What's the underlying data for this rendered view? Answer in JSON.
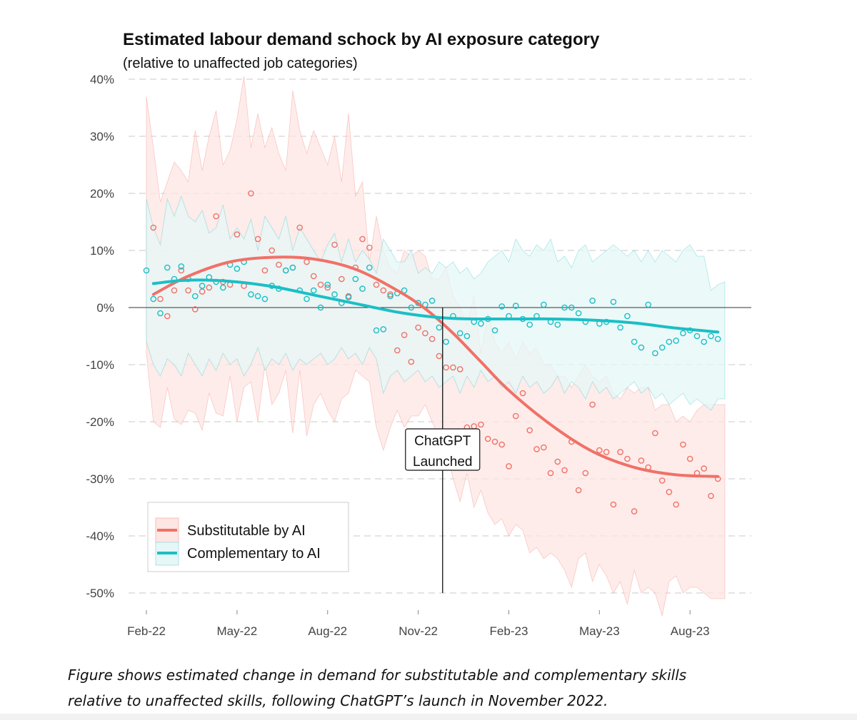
{
  "chart_data": {
    "type": "line",
    "title": "Estimated labour demand schock by AI exposure category",
    "subtitle": "(relative to unaffected job categories)",
    "xlabel": "",
    "ylabel": "",
    "ylim": [
      -52,
      40
    ],
    "y_ticks": [
      40,
      30,
      20,
      10,
      0,
      -10,
      -20,
      -30,
      -40,
      -50
    ],
    "y_tick_labels": [
      "40%",
      "30%",
      "20%",
      "10%",
      "0%",
      "-10%",
      "-20%",
      "-30%",
      "-40%",
      "-50%"
    ],
    "x_range": [
      0,
      83
    ],
    "x_ticks": [
      0,
      13,
      26,
      39,
      52,
      65,
      78
    ],
    "x_tick_labels": [
      "Feb-22",
      "May-22",
      "Aug-22",
      "Nov-22",
      "Feb-23",
      "May-23",
      "Aug-23"
    ],
    "grid": true,
    "legend_position": "bottom-left",
    "annotation": {
      "x": 42.5,
      "lines": [
        "ChatGPT",
        "Launched"
      ]
    },
    "series": [
      {
        "name": "Substitutable by AI",
        "color": "#F07167",
        "band_color": "#FDE6E3",
        "trend_x": [
          1,
          6,
          12,
          18,
          24,
          30,
          36,
          40,
          44,
          48,
          52,
          58,
          64,
          70,
          76,
          82
        ],
        "trend_y": [
          2.3,
          5.5,
          8,
          8.8,
          8.5,
          6.7,
          3,
          -0.2,
          -4.5,
          -9.5,
          -14.5,
          -20.5,
          -25.2,
          -28,
          -29.3,
          -29.6
        ],
        "points_x": [
          1,
          2,
          3,
          4,
          5,
          6,
          7,
          8,
          9,
          10,
          11,
          12,
          13,
          14,
          15,
          16,
          17,
          18,
          19,
          20,
          21,
          22,
          23,
          24,
          25,
          26,
          27,
          28,
          29,
          30,
          31,
          32,
          33,
          34,
          35,
          36,
          37,
          38,
          39,
          40,
          41,
          42,
          43,
          44,
          45,
          46,
          47,
          48,
          49,
          50,
          51,
          52,
          53,
          54,
          55,
          56,
          57,
          58,
          59,
          60,
          61,
          62,
          63,
          64,
          65,
          66,
          67,
          68,
          69,
          70,
          71,
          72,
          73,
          74,
          75,
          76,
          77,
          78,
          79,
          80,
          81,
          82
        ],
        "points_y": [
          14,
          1.5,
          -1.5,
          3,
          6.5,
          3,
          -0.3,
          2.8,
          3.5,
          16,
          4.5,
          4,
          12.8,
          3.8,
          20,
          12,
          6.5,
          10,
          7.5,
          6.5,
          7,
          14,
          8,
          5.5,
          4,
          3.5,
          11,
          5,
          2,
          7,
          12,
          10.5,
          4,
          3,
          2.3,
          -7.5,
          -4.8,
          -9.5,
          -3.5,
          -4.5,
          -5.5,
          -8.5,
          -10.5,
          -10.5,
          -10.8,
          -21,
          -20.8,
          -20.5,
          -23,
          -23.5,
          -24,
          -27.8,
          -19,
          -15,
          -21.5,
          -24.8,
          -24.5,
          -29,
          -27,
          -28.5,
          -23.5,
          -32,
          -29,
          -17,
          -25,
          -25.3,
          -34.5,
          -25.3,
          -26.5,
          -35.7,
          -26.8,
          -28,
          -22,
          -30.3,
          -32.3,
          -34.5,
          -24,
          -26.5,
          -29,
          -28.2,
          -33,
          -30
        ],
        "band_x": [
          0,
          1,
          2,
          3,
          4,
          5,
          6,
          7,
          8,
          9,
          10,
          11,
          12,
          13,
          14,
          15,
          16,
          17,
          18,
          19,
          20,
          21,
          22,
          23,
          24,
          25,
          26,
          27,
          28,
          29,
          30,
          31,
          32,
          33,
          34,
          35,
          36,
          37,
          38,
          39,
          40,
          41,
          42,
          43,
          44,
          45,
          46,
          47,
          48,
          49,
          50,
          51,
          52,
          53,
          54,
          55,
          56,
          57,
          58,
          59,
          60,
          61,
          62,
          63,
          64,
          65,
          66,
          67,
          68,
          69,
          70,
          71,
          72,
          73,
          74,
          75,
          76,
          77,
          78,
          79,
          80,
          81,
          82,
          83
        ],
        "band_upper": [
          37,
          28,
          18.5,
          22,
          25.5,
          24,
          22,
          31,
          24,
          30,
          34.5,
          25,
          27.5,
          33,
          40.5,
          28,
          34,
          28,
          31.5,
          27,
          24,
          38,
          31,
          27,
          31,
          28,
          25,
          30,
          22,
          34,
          19.5,
          22,
          8,
          16,
          10,
          7,
          6,
          10,
          9,
          10,
          9,
          5,
          5,
          7,
          2,
          0,
          -3,
          2,
          -8,
          -1,
          -6,
          -8,
          -6,
          -9,
          -6,
          -8,
          -7,
          -10,
          -10,
          -12,
          -12,
          -14,
          -12,
          -10,
          -12,
          -13,
          -12,
          -15,
          -16,
          -14,
          -15,
          -14,
          -14,
          -18,
          -17,
          -17,
          -20,
          -19,
          -20,
          -18,
          -17,
          -17,
          -17,
          -17
        ],
        "band_lower": [
          -8,
          -20,
          -21,
          -14,
          -19.5,
          -20.5,
          -18,
          -18.5,
          -21.5,
          -15,
          -18.5,
          -19,
          -12,
          -20,
          -14,
          -13,
          -20,
          -10,
          -17,
          -15,
          -11,
          -22,
          -11,
          -22.5,
          -17,
          -15,
          -18,
          -20,
          -16,
          -15,
          -11,
          -12,
          -13,
          -21,
          -25,
          -21,
          -18,
          -21,
          -19,
          -19,
          -17,
          -20,
          -23,
          -25,
          -30,
          -34,
          -29,
          -35,
          -32,
          -36,
          -38,
          -37,
          -40,
          -38,
          -39,
          -43,
          -42,
          -44,
          -43,
          -44,
          -46,
          -49,
          -44,
          -43,
          -48,
          -45,
          -47,
          -50,
          -48,
          -52,
          -46,
          -50,
          -49,
          -50,
          -54,
          -48,
          -47,
          -50,
          -49,
          -49,
          -50,
          -51,
          -51,
          -51
        ]
      },
      {
        "name": "Complementary to AI",
        "color": "#1ABFC5",
        "band_color": "#E6F7F7",
        "trend_x": [
          1,
          6,
          12,
          18,
          24,
          30,
          36,
          40,
          44,
          48,
          52,
          58,
          64,
          70,
          76,
          82
        ],
        "trend_y": [
          4.2,
          4.8,
          4.6,
          3.7,
          2.2,
          0.7,
          -0.8,
          -1.5,
          -1.9,
          -2,
          -2,
          -2,
          -2.2,
          -2.7,
          -3.6,
          -4.3
        ],
        "points_x": [
          0,
          1,
          2,
          3,
          4,
          5,
          6,
          7,
          8,
          9,
          10,
          11,
          12,
          13,
          14,
          15,
          16,
          17,
          18,
          19,
          20,
          21,
          22,
          23,
          24,
          25,
          26,
          27,
          28,
          29,
          30,
          31,
          32,
          33,
          34,
          35,
          36,
          37,
          38,
          39,
          40,
          41,
          42,
          43,
          44,
          45,
          46,
          47,
          48,
          49,
          50,
          51,
          52,
          53,
          54,
          55,
          56,
          57,
          58,
          59,
          60,
          61,
          62,
          63,
          64,
          65,
          66,
          67,
          68,
          69,
          70,
          71,
          72,
          73,
          74,
          75,
          76,
          77,
          78,
          79,
          80,
          81,
          82
        ],
        "points_y": [
          6.5,
          1.5,
          -1,
          7,
          5,
          7.2,
          5,
          2,
          3.8,
          5.3,
          4.5,
          3.5,
          7.5,
          6.8,
          8,
          2.3,
          2,
          1.5,
          3.8,
          3.3,
          6.5,
          7,
          3,
          1.5,
          3,
          0,
          4,
          2.3,
          0.8,
          1.8,
          5,
          3.3,
          7,
          -4,
          -3.8,
          2,
          2.5,
          3,
          0,
          0.8,
          0.5,
          1.2,
          -3.5,
          -6,
          -1.5,
          -4.5,
          -5,
          -2.5,
          -2.8,
          -2,
          -4,
          0.2,
          -1.5,
          0.3,
          -2,
          -3,
          -1.5,
          0.5,
          -2.5,
          -3,
          0,
          0,
          -1,
          -2.5,
          1.2,
          -2.8,
          -2.5,
          1,
          -3.5,
          -1.5,
          -6,
          -7,
          0.5,
          -8,
          -7,
          -6,
          -5.8,
          -4.5,
          -4,
          -5,
          -6,
          -5,
          -5.5
        ],
        "band_x": [
          0,
          1,
          2,
          3,
          4,
          5,
          6,
          7,
          8,
          9,
          10,
          11,
          12,
          13,
          14,
          15,
          16,
          17,
          18,
          19,
          20,
          21,
          22,
          23,
          24,
          25,
          26,
          27,
          28,
          29,
          30,
          31,
          32,
          33,
          34,
          35,
          36,
          37,
          38,
          39,
          40,
          41,
          42,
          43,
          44,
          45,
          46,
          47,
          48,
          49,
          50,
          51,
          52,
          53,
          54,
          55,
          56,
          57,
          58,
          59,
          60,
          61,
          62,
          63,
          64,
          65,
          66,
          67,
          68,
          69,
          70,
          71,
          72,
          73,
          74,
          75,
          76,
          77,
          78,
          79,
          80,
          81,
          82,
          83
        ],
        "band_upper": [
          19,
          14,
          11,
          19,
          16,
          19.5,
          16,
          15,
          17,
          13,
          14,
          18,
          12,
          14,
          12,
          15.5,
          10,
          16,
          14,
          12,
          16,
          10,
          14,
          12,
          10,
          8,
          11,
          13,
          8,
          12,
          8,
          10,
          8.5,
          6,
          12,
          10,
          8,
          8,
          10,
          6,
          7,
          6,
          8,
          7,
          8,
          6,
          7,
          5,
          6,
          8,
          9,
          10,
          8,
          12,
          10,
          9,
          11,
          10,
          12,
          8,
          9,
          7,
          10,
          11,
          8,
          9,
          10,
          11,
          10,
          9,
          10,
          8,
          10,
          8,
          10,
          9,
          8,
          10,
          11,
          9,
          9,
          3,
          4,
          4.5
        ],
        "band_lower": [
          -6,
          -10,
          -12,
          -9,
          -10,
          -12,
          -8,
          -10,
          -12,
          -9,
          -11,
          -8,
          -10,
          -9,
          -12,
          -10,
          -7,
          -11,
          -9,
          -10,
          -8,
          -11,
          -9,
          -10,
          -9,
          -8,
          -10,
          -9,
          -7,
          -9,
          -8,
          -10,
          -7,
          -9,
          -15,
          -12,
          -11,
          -13,
          -12,
          -11,
          -13,
          -12,
          -14,
          -13,
          -12,
          -15,
          -12,
          -14,
          -11,
          -13,
          -12,
          -14,
          -13,
          -15,
          -12,
          -14,
          -13,
          -15,
          -14,
          -12,
          -15,
          -13,
          -14,
          -16,
          -13,
          -15,
          -14,
          -16,
          -15,
          -14,
          -13,
          -15,
          -14,
          -16,
          -15,
          -17,
          -16,
          -15,
          -17,
          -16,
          -17,
          -18,
          -16,
          -16
        ]
      }
    ]
  },
  "caption": {
    "line1": "Figure shows estimated change in demand for substitutable and complementary skills",
    "line2": "relative to unaffected skills, following ChatGPT’s launch in November 2022."
  }
}
